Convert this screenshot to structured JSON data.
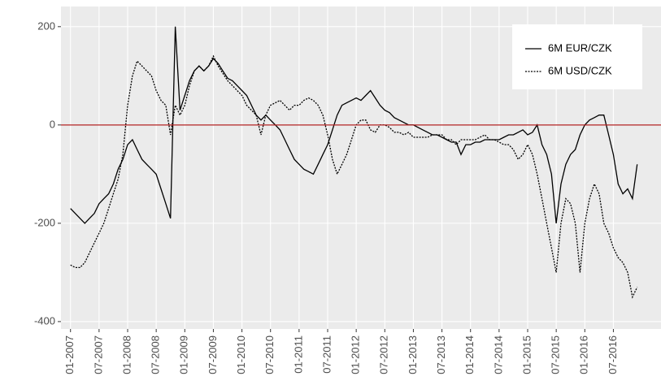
{
  "chart_data": {
    "type": "line",
    "x": [
      "01-2007",
      "02-2007",
      "03-2007",
      "04-2007",
      "05-2007",
      "06-2007",
      "07-2007",
      "08-2007",
      "09-2007",
      "10-2007",
      "11-2007",
      "12-2007",
      "01-2008",
      "02-2008",
      "03-2008",
      "04-2008",
      "05-2008",
      "06-2008",
      "07-2008",
      "08-2008",
      "09-2008",
      "10-2008",
      "11-2008",
      "12-2008",
      "01-2009",
      "02-2009",
      "03-2009",
      "04-2009",
      "05-2009",
      "06-2009",
      "07-2009",
      "08-2009",
      "09-2009",
      "10-2009",
      "11-2009",
      "12-2009",
      "01-2010",
      "02-2010",
      "03-2010",
      "04-2010",
      "05-2010",
      "06-2010",
      "07-2010",
      "08-2010",
      "09-2010",
      "10-2010",
      "11-2010",
      "12-2010",
      "01-2011",
      "02-2011",
      "03-2011",
      "04-2011",
      "05-2011",
      "06-2011",
      "07-2011",
      "08-2011",
      "09-2011",
      "10-2011",
      "11-2011",
      "12-2011",
      "01-2012",
      "02-2012",
      "03-2012",
      "04-2012",
      "05-2012",
      "06-2012",
      "07-2012",
      "08-2012",
      "09-2012",
      "10-2012",
      "11-2012",
      "12-2012",
      "01-2013",
      "02-2013",
      "03-2013",
      "04-2013",
      "05-2013",
      "06-2013",
      "07-2013",
      "08-2013",
      "09-2013",
      "10-2013",
      "11-2013",
      "12-2013",
      "01-2014",
      "02-2014",
      "03-2014",
      "04-2014",
      "05-2014",
      "06-2014",
      "07-2014",
      "08-2014",
      "09-2014",
      "10-2014",
      "11-2014",
      "12-2014",
      "01-2015",
      "02-2015",
      "03-2015",
      "04-2015",
      "05-2015",
      "06-2015",
      "07-2015",
      "08-2015",
      "09-2015",
      "10-2015",
      "11-2015",
      "12-2015",
      "01-2016",
      "02-2016",
      "03-2016",
      "04-2016",
      "05-2016",
      "06-2016",
      "07-2016",
      "08-2016",
      "09-2016",
      "10-2016",
      "11-2016",
      "12-2016"
    ],
    "series": [
      {
        "name": "6M EUR/CZK",
        "color": "#000000",
        "linestyle": "solid",
        "values": [
          -170,
          -180,
          -190,
          -200,
          -190,
          -180,
          -160,
          -150,
          -140,
          -120,
          -90,
          -70,
          -40,
          -30,
          -50,
          -70,
          -80,
          -90,
          -100,
          -130,
          -160,
          -190,
          200,
          30,
          60,
          90,
          110,
          120,
          110,
          120,
          135,
          125,
          110,
          95,
          90,
          80,
          70,
          60,
          40,
          20,
          10,
          20,
          10,
          0,
          -10,
          -30,
          -50,
          -70,
          -80,
          -90,
          -95,
          -100,
          -80,
          -60,
          -40,
          -10,
          20,
          40,
          45,
          50,
          55,
          50,
          60,
          70,
          55,
          40,
          30,
          25,
          15,
          10,
          5,
          0,
          0,
          -5,
          -10,
          -15,
          -20,
          -20,
          -25,
          -30,
          -35,
          -35,
          -60,
          -40,
          -40,
          -35,
          -35,
          -30,
          -30,
          -30,
          -30,
          -25,
          -20,
          -20,
          -15,
          -10,
          -20,
          -15,
          0,
          -40,
          -60,
          -100,
          -200,
          -120,
          -80,
          -60,
          -50,
          -20,
          0,
          10,
          15,
          20,
          20,
          -20,
          -60,
          -120,
          -140,
          -130,
          -150,
          -80
        ]
      },
      {
        "name": "6M USD/CZK",
        "color": "#000000",
        "linestyle": "dashed",
        "values": [
          -285,
          -290,
          -290,
          -280,
          -260,
          -240,
          -220,
          -200,
          -170,
          -140,
          -110,
          -60,
          40,
          100,
          130,
          120,
          110,
          100,
          70,
          50,
          40,
          -20,
          40,
          20,
          40,
          80,
          110,
          120,
          110,
          120,
          140,
          120,
          105,
          90,
          80,
          70,
          60,
          40,
          30,
          20,
          -20,
          20,
          40,
          45,
          50,
          40,
          30,
          40,
          40,
          50,
          55,
          50,
          40,
          20,
          -20,
          -70,
          -100,
          -80,
          -60,
          -30,
          0,
          10,
          10,
          -10,
          -15,
          0,
          0,
          -5,
          -15,
          -15,
          -20,
          -15,
          -25,
          -25,
          -25,
          -25,
          -20,
          -20,
          -20,
          -30,
          -30,
          -40,
          -30,
          -30,
          -30,
          -30,
          -25,
          -20,
          -30,
          -30,
          -35,
          -40,
          -40,
          -50,
          -70,
          -60,
          -40,
          -60,
          -100,
          -150,
          -200,
          -250,
          -300,
          -200,
          -150,
          -160,
          -200,
          -300,
          -200,
          -150,
          -120,
          -140,
          -200,
          -220,
          -250,
          -270,
          -280,
          -300,
          -350,
          -330
        ]
      }
    ],
    "xlim": [
      "11-2006",
      "05-2017"
    ],
    "xticks": [
      "01-2007",
      "07-2007",
      "01-2008",
      "07-2008",
      "01-2009",
      "07-2009",
      "01-2010",
      "07-2010",
      "01-2011",
      "07-2011",
      "01-2012",
      "07-2012",
      "01-2013",
      "07-2013",
      "01-2014",
      "07-2014",
      "01-2015",
      "07-2015",
      "01-2016",
      "07-2016"
    ],
    "ylim": [
      -415,
      241
    ],
    "yticks": [
      -400,
      -200,
      0,
      200
    ],
    "hline": 0,
    "hline_color": "#b22222",
    "grid": true,
    "legend": "top-right"
  }
}
